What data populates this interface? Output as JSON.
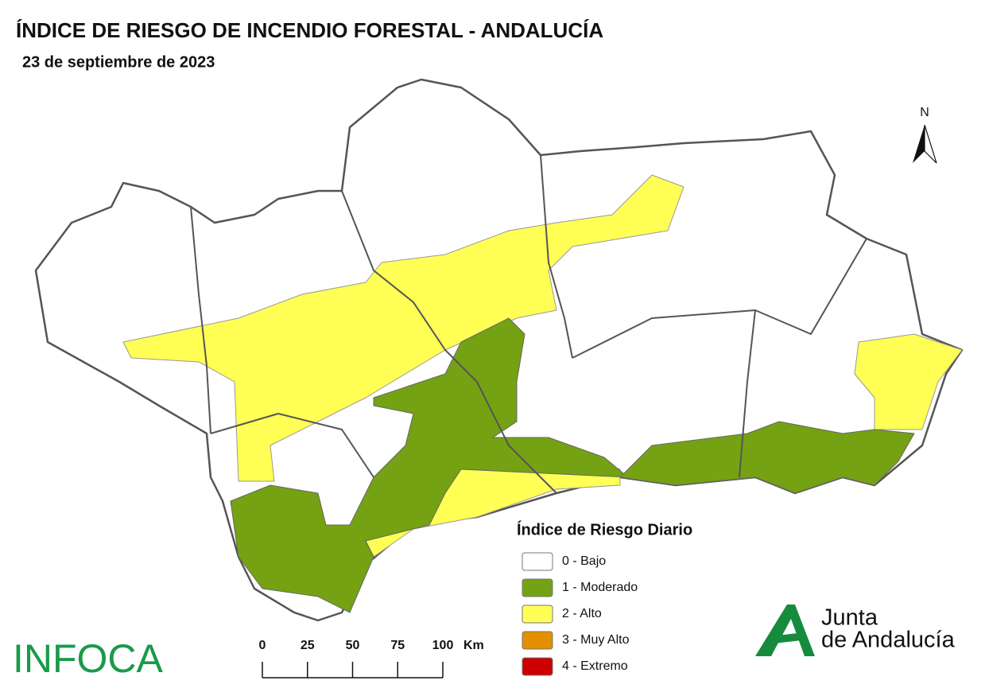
{
  "header": {
    "title": "ÍNDICE DE RIESGO DE INCENDIO FORESTAL - ANDALUCÍA",
    "date": "23 de septiembre de 2023"
  },
  "north_arrow": {
    "label": "N"
  },
  "legend": {
    "title": "Índice de Riesgo Diario",
    "items": [
      {
        "label": "0 - Bajo",
        "color": "#ffffff"
      },
      {
        "label": "1 - Moderado",
        "color": "#74a213"
      },
      {
        "label": "2 - Alto",
        "color": "#ffff55"
      },
      {
        "label": "3 - Muy Alto",
        "color": "#e29000"
      },
      {
        "label": "4 - Extremo",
        "color": "#cc0000"
      }
    ]
  },
  "scale_bar": {
    "ticks": [
      0,
      25,
      50,
      75,
      100
    ],
    "unit": "Km"
  },
  "logos": {
    "infoca": "INFOCA",
    "junta_line1": "Junta",
    "junta_line2": "de Andalucía"
  }
}
